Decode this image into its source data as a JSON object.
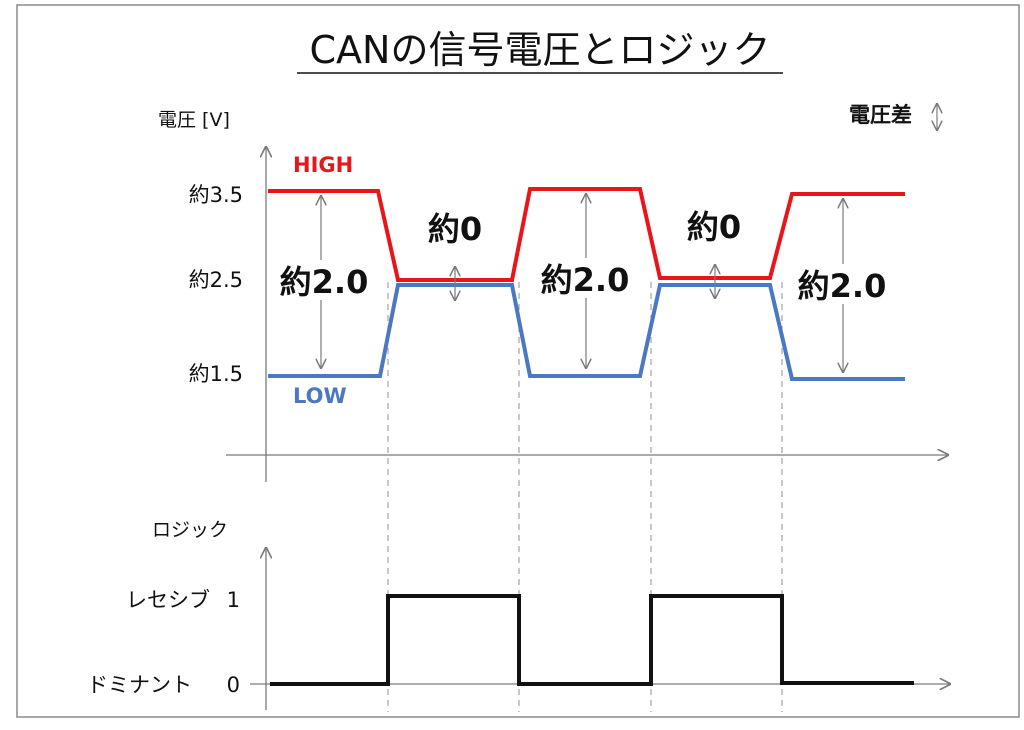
{
  "title": "CANの信号電圧とロジック",
  "voltage_chart": {
    "ylabel": "電圧 [V]",
    "ticks": [
      "約3.5",
      "約2.5",
      "約1.5"
    ],
    "high_label": "HIGH",
    "low_label": "LOW",
    "legend_label": "電圧差",
    "diff_labels": [
      "約2.0",
      "約0",
      "約2.0",
      "約0",
      "約2.0"
    ],
    "colors": {
      "high": "#e8161b",
      "low": "#4a78c2",
      "axis": "#7a7a7a"
    }
  },
  "logic_chart": {
    "ylabel": "ロジック",
    "level_1_name": "レセシブ",
    "level_1_value": "1",
    "level_0_name": "ドミナント",
    "level_0_value": "0"
  }
}
